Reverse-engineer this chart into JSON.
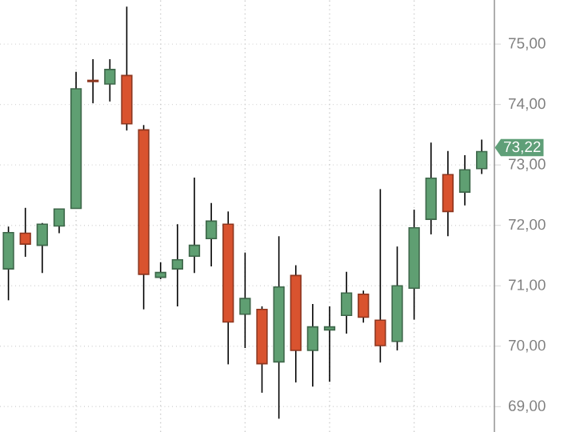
{
  "chart_data": {
    "type": "candlestick",
    "categories": [
      null,
      null,
      null,
      null,
      null,
      null,
      null,
      null,
      null,
      null,
      null,
      null,
      null,
      null,
      null,
      null,
      null,
      null,
      null,
      null,
      null,
      null,
      null,
      null,
      null,
      null,
      null,
      null,
      null
    ],
    "ohlc": [
      [
        71.28,
        71.98,
        70.76,
        71.88
      ],
      [
        71.87,
        72.29,
        71.48,
        71.69
      ],
      [
        71.67,
        72.04,
        71.21,
        72.02
      ],
      [
        71.99,
        72.27,
        71.87,
        72.27
      ],
      [
        72.28,
        74.54,
        72.28,
        74.26
      ],
      [
        74.4,
        74.75,
        74.02,
        74.38
      ],
      [
        74.34,
        74.75,
        74.05,
        74.58
      ],
      [
        74.48,
        75.62,
        73.57,
        73.68
      ],
      [
        73.58,
        73.66,
        70.61,
        71.19
      ],
      [
        71.14,
        71.39,
        71.11,
        71.22
      ],
      [
        71.28,
        72.02,
        70.66,
        71.43
      ],
      [
        71.49,
        72.79,
        71.21,
        71.67
      ],
      [
        71.78,
        72.37,
        71.32,
        72.07
      ],
      [
        72.02,
        72.23,
        69.7,
        70.4
      ],
      [
        70.53,
        71.55,
        69.97,
        70.79
      ],
      [
        70.61,
        70.66,
        69.23,
        69.71
      ],
      [
        69.74,
        71.82,
        68.8,
        70.98
      ],
      [
        71.17,
        71.34,
        69.4,
        69.93
      ],
      [
        69.93,
        70.7,
        69.33,
        70.32
      ],
      [
        70.27,
        70.66,
        69.41,
        70.32
      ],
      [
        70.51,
        71.23,
        70.21,
        70.88
      ],
      [
        70.86,
        70.92,
        70.39,
        70.48
      ],
      [
        70.43,
        72.6,
        69.73,
        70.01
      ],
      [
        70.08,
        71.65,
        69.93,
        71.0
      ],
      [
        70.96,
        72.26,
        70.44,
        71.96
      ],
      [
        72.1,
        73.37,
        71.85,
        72.78
      ],
      [
        72.84,
        73.23,
        71.82,
        72.23
      ],
      [
        72.55,
        73.16,
        72.33,
        72.92
      ],
      [
        72.94,
        73.42,
        72.85,
        73.22
      ]
    ],
    "colors": [
      "#5f9f72",
      "#d9532f",
      "#5f9f72",
      "#5f9f72",
      "#5f9f72",
      "#d9532f",
      "#5f9f72",
      "#d9532f",
      "#d9532f",
      "#5f9f72",
      "#5f9f72",
      "#5f9f72",
      "#5f9f72",
      "#d9532f",
      "#5f9f72",
      "#d9532f",
      "#5f9f72",
      "#d9532f",
      "#5f9f72",
      "#5f9f72",
      "#5f9f72",
      "#d9532f",
      "#d9532f",
      "#5f9f72",
      "#5f9f72",
      "#5f9f72",
      "#d9532f",
      "#5f9f72",
      "#5f9f72"
    ],
    "ylim": [
      68.58,
      75.73
    ],
    "yticks": [
      {
        "value": 69,
        "label": "69,00"
      },
      {
        "value": 70,
        "label": "70,00"
      },
      {
        "value": 71,
        "label": "71,00"
      },
      {
        "value": 72,
        "label": "72,00"
      },
      {
        "value": 73,
        "label": "73,00"
      },
      {
        "value": 74,
        "label": "74,00"
      },
      {
        "value": 75,
        "label": "75,00"
      }
    ],
    "tick_labels": "y",
    "grid": true,
    "annotations": [
      "73,22"
    ]
  }
}
